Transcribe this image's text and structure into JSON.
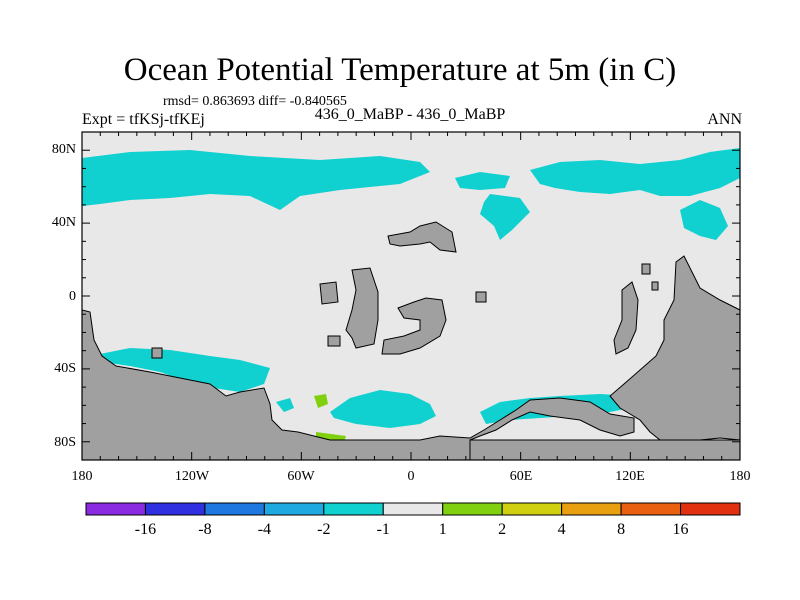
{
  "title": "Ocean Potential Temperature at 5m (in C)",
  "stats": "rmsd= 0.863693 diff= -0.840565",
  "expt": "Expt = tfKSj-tfKEj",
  "case": "436_0_MaBP - 436_0_MaBP",
  "season": "ANN",
  "lat_ticks": [
    "80N",
    "40N",
    "0",
    "40S",
    "80S"
  ],
  "lon_ticks": [
    "180",
    "120W",
    "60W",
    "0",
    "60E",
    "120E",
    "180"
  ],
  "legend": {
    "colors": [
      "#8a2be2",
      "#3030e0",
      "#1e78e0",
      "#1eaae0",
      "#10d0d0",
      "#e8e8e8",
      "#80d010",
      "#d0d010",
      "#e8a010",
      "#e86010",
      "#e03010"
    ],
    "labels": [
      "-16",
      "-8",
      "-4",
      "-2",
      "-1",
      "1",
      "2",
      "4",
      "8",
      "16"
    ]
  },
  "colors": {
    "ocean": "#e8e8e8",
    "land": "#a0a0a0",
    "cool": "#10d0d0",
    "warm": "#80d010"
  }
}
